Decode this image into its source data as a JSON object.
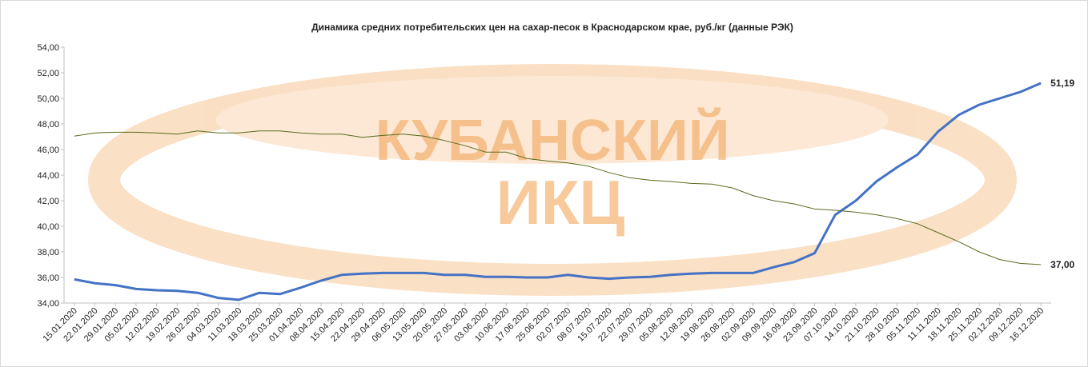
{
  "chart_data": {
    "type": "line",
    "title": "Динамика средних потребительских цен на сахар-песок в Краснодарском крае, руб./кг (данные РЭК)",
    "watermark": [
      "КУБАНСКИЙ",
      "ИКЦ"
    ],
    "categories": [
      "15.01.2020",
      "22.01.2020",
      "29.01.2020",
      "05.02.2020",
      "12.02.2020",
      "19.02.2020",
      "26.02.2020",
      "04.03.2020",
      "11.03.2020",
      "18.03.2020",
      "25.03.2020",
      "01.04.2020",
      "08.04.2020",
      "15.04.2020",
      "22.04.2020",
      "29.04.2020",
      "06.05.2020",
      "13.05.2020",
      "20.05.2020",
      "27.05.2020",
      "03.06.2020",
      "10.06.2020",
      "17.06.2020",
      "25.06.2020",
      "02.07.2020",
      "08.07.2020",
      "15.07.2020",
      "22.07.2020",
      "29.07.2020",
      "05.08.2020",
      "12.08.2020",
      "19.08.2020",
      "26.08.2020",
      "02.09.2020",
      "09.09.2020",
      "16.09.2020",
      "23.09.2020",
      "07.10.2020",
      "14.10.2020",
      "21.10.2020",
      "28.10.2020",
      "05.11.2020",
      "11.11.2020",
      "18.11.2020",
      "25.11.2020",
      "02.12.2020",
      "09.12.2020",
      "16.12.2020"
    ],
    "series": [
      {
        "color": "#4472c4",
        "width": 3,
        "values": [
          35.85,
          35.55,
          35.4,
          35.1,
          35.0,
          34.95,
          34.8,
          34.4,
          34.25,
          34.8,
          34.7,
          35.2,
          35.75,
          36.2,
          36.3,
          36.35,
          36.35,
          36.35,
          36.2,
          36.2,
          36.05,
          36.05,
          36.0,
          36.0,
          36.2,
          36.0,
          35.9,
          36.0,
          36.05,
          36.2,
          36.3,
          36.35,
          36.35,
          36.35,
          36.8,
          37.2,
          37.9,
          40.9,
          42.0,
          43.5,
          44.6,
          45.6,
          47.4,
          48.7,
          49.5,
          50.0,
          50.5,
          51.19
        ],
        "value_labels": [
          null,
          null,
          null,
          null,
          null,
          null,
          null,
          null,
          null,
          null,
          null,
          null,
          null,
          null,
          null,
          null,
          null,
          null,
          null,
          null,
          null,
          null,
          null,
          null,
          null,
          null,
          null,
          null,
          null,
          null,
          null,
          null,
          null,
          null,
          null,
          null,
          null,
          null,
          null,
          null,
          null,
          null,
          null,
          null,
          null,
          null,
          null,
          "51,19"
        ]
      },
      {
        "color": "#5b6b1e",
        "width": 1,
        "values": [
          47.05,
          47.3,
          47.35,
          47.35,
          47.3,
          47.2,
          47.45,
          47.3,
          47.3,
          47.45,
          47.45,
          47.3,
          47.2,
          47.2,
          46.95,
          47.1,
          47.2,
          47.05,
          46.7,
          46.3,
          45.8,
          45.8,
          45.3,
          45.1,
          44.95,
          44.7,
          44.2,
          43.8,
          43.6,
          43.5,
          43.35,
          43.3,
          43.0,
          42.4,
          42.0,
          41.75,
          41.35,
          41.25,
          41.1,
          40.9,
          40.6,
          40.2,
          39.5,
          38.8,
          38.0,
          37.4,
          37.1,
          37.0
        ],
        "value_labels": [
          null,
          null,
          null,
          null,
          null,
          null,
          null,
          null,
          null,
          null,
          null,
          null,
          null,
          null,
          null,
          null,
          null,
          null,
          null,
          null,
          null,
          null,
          null,
          null,
          null,
          null,
          null,
          null,
          null,
          null,
          null,
          null,
          null,
          null,
          null,
          null,
          null,
          null,
          null,
          null,
          null,
          null,
          null,
          null,
          null,
          null,
          null,
          "37,00"
        ]
      }
    ],
    "ylim": [
      34,
      54
    ],
    "yticks": [
      {
        "value": 34,
        "label": "34,00"
      },
      {
        "value": 36,
        "label": "36,00"
      },
      {
        "value": 38,
        "label": "38,00"
      },
      {
        "value": 40,
        "label": "40,00"
      },
      {
        "value": 42,
        "label": "42,00"
      },
      {
        "value": 44,
        "label": "44,00"
      },
      {
        "value": 46,
        "label": "46,00"
      },
      {
        "value": 48,
        "label": "48,00"
      },
      {
        "value": 50,
        "label": "50,00"
      },
      {
        "value": 52,
        "label": "52,00"
      },
      {
        "value": 54,
        "label": "54,00"
      }
    ],
    "grid": false
  }
}
